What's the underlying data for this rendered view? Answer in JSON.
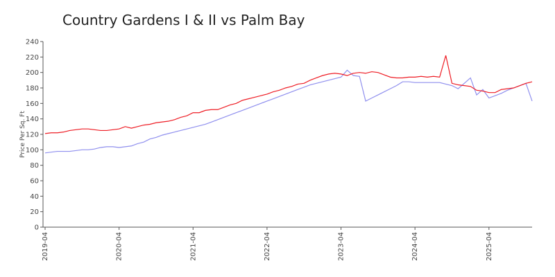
{
  "chart_data": {
    "type": "line",
    "title": "Country Gardens I & II vs Palm Bay",
    "y_label": "Price Per Sq. Ft",
    "x": [
      "2019-04",
      "2019-05",
      "2019-06",
      "2019-07",
      "2019-08",
      "2019-09",
      "2019-10",
      "2019-11",
      "2019-12",
      "2020-01",
      "2020-02",
      "2020-03",
      "2020-04",
      "2020-05",
      "2020-06",
      "2020-07",
      "2020-08",
      "2020-09",
      "2020-10",
      "2020-11",
      "2020-12",
      "2021-01",
      "2021-02",
      "2021-03",
      "2021-04",
      "2021-05",
      "2021-06",
      "2021-07",
      "2021-08",
      "2021-09",
      "2021-10",
      "2021-11",
      "2021-12",
      "2022-01",
      "2022-02",
      "2022-03",
      "2022-04",
      "2022-05",
      "2022-06",
      "2022-07",
      "2022-08",
      "2022-09",
      "2022-10",
      "2022-11",
      "2022-12",
      "2023-01",
      "2023-02",
      "2023-03",
      "2023-04",
      "2023-05",
      "2023-06",
      "2023-07",
      "2023-08",
      "2023-09",
      "2023-10",
      "2023-11",
      "2023-12",
      "2024-01",
      "2024-02",
      "2024-03",
      "2024-04",
      "2024-05",
      "2024-06",
      "2024-07",
      "2024-08",
      "2024-09",
      "2024-10",
      "2024-11",
      "2024-12",
      "2025-01",
      "2025-02",
      "2025-03",
      "2025-04",
      "2025-05",
      "2025-06",
      "2025-07",
      "2025-08",
      "2025-09",
      "2025-10",
      "2025-11"
    ],
    "series": [
      {
        "color": "#ee1c24",
        "values": [
          121,
          122,
          122,
          123,
          125,
          126,
          127,
          127,
          126,
          125,
          125,
          126,
          127,
          130,
          128,
          130,
          132,
          133,
          135,
          136,
          137,
          139,
          142,
          144,
          148,
          148,
          151,
          152,
          152,
          155,
          158,
          160,
          164,
          166,
          168,
          170,
          172,
          175,
          177,
          180,
          182,
          185,
          186,
          190,
          193,
          196,
          198,
          199,
          198,
          196,
          199,
          200,
          199,
          201,
          200,
          197,
          194,
          193,
          193,
          194,
          194,
          195,
          194,
          195,
          194,
          222,
          186,
          184,
          183,
          182,
          177,
          176,
          174,
          174,
          178,
          179,
          180,
          183,
          186,
          188
        ]
      },
      {
        "color": "#8f8fee",
        "values": [
          96,
          97,
          98,
          98,
          98,
          99,
          100,
          100,
          101,
          103,
          104,
          104,
          103,
          104,
          105,
          108,
          110,
          114,
          116,
          119,
          121,
          123,
          125,
          127,
          129,
          131,
          133,
          136,
          139,
          142,
          145,
          148,
          151,
          154,
          157,
          160,
          163,
          166,
          169,
          172,
          175,
          178,
          181,
          184,
          186,
          188,
          190,
          192,
          194,
          203,
          196,
          195,
          163,
          167,
          171,
          175,
          179,
          183,
          188,
          188,
          187,
          187,
          187,
          187,
          187,
          185,
          183,
          179,
          186,
          193,
          171,
          178,
          167,
          170,
          173,
          177,
          180,
          183,
          186,
          163
        ]
      }
    ],
    "xlim": [
      "2019-04",
      "2025-11"
    ],
    "xticks": [
      "2019-04",
      "2020-04",
      "2021-04",
      "2022-04",
      "2023-04",
      "2024-04",
      "2025-04"
    ],
    "ylim": [
      0,
      240
    ],
    "yticks": [
      0,
      20,
      40,
      60,
      80,
      100,
      120,
      140,
      160,
      180,
      200,
      220,
      240
    ]
  }
}
